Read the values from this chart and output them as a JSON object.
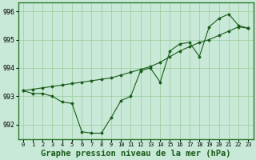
{
  "x": [
    0,
    1,
    2,
    3,
    4,
    5,
    6,
    7,
    8,
    9,
    10,
    11,
    12,
    13,
    14,
    15,
    16,
    17,
    18,
    19,
    20,
    21,
    22,
    23
  ],
  "y_main": [
    993.2,
    993.1,
    993.1,
    993.0,
    992.8,
    992.75,
    991.75,
    991.7,
    991.7,
    992.25,
    992.85,
    993.0,
    993.9,
    994.0,
    993.5,
    994.6,
    994.85,
    994.9,
    994.4,
    995.45,
    995.75,
    995.9,
    995.5,
    995.4
  ],
  "y_line2": [
    993.2,
    993.25,
    993.3,
    993.35,
    993.4,
    993.45,
    993.5,
    993.55,
    993.6,
    993.65,
    993.75,
    993.85,
    993.95,
    994.05,
    994.2,
    994.4,
    994.6,
    994.75,
    994.9,
    995.0,
    995.15,
    995.3,
    995.45,
    995.4
  ],
  "xlim": [
    -0.5,
    23.5
  ],
  "ylim": [
    991.5,
    996.3
  ],
  "yticks": [
    992,
    993,
    994,
    995,
    996
  ],
  "xticks": [
    0,
    1,
    2,
    3,
    4,
    5,
    6,
    7,
    8,
    9,
    10,
    11,
    12,
    13,
    14,
    15,
    16,
    17,
    18,
    19,
    20,
    21,
    22,
    23
  ],
  "xlabel": "Graphe pression niveau de la mer (hPa)",
  "bg_color": "#c8e8d8",
  "grid_color": "#99cc99",
  "line_color": "#1a5c1a",
  "marker_color": "#1a5c1a",
  "border_color": "#2d7a2d",
  "xlabel_fontsize": 7.5,
  "tick_fontsize": 6
}
